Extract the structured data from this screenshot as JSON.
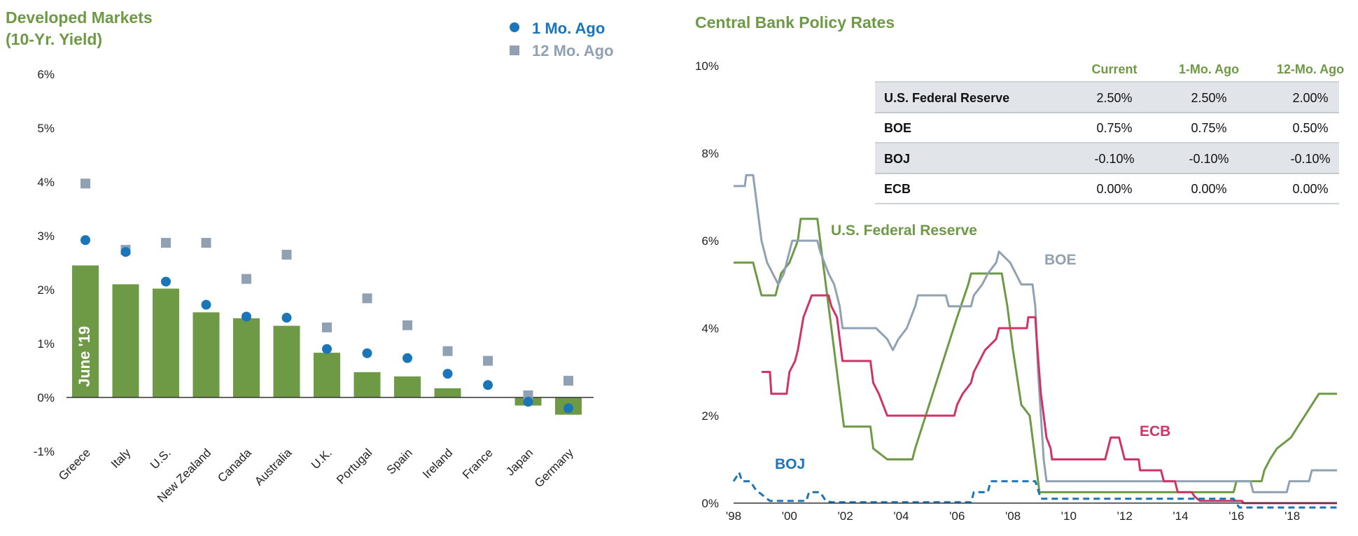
{
  "chart_data": [
    {
      "type": "bar",
      "title_line1": "Developed Markets",
      "title_line2": "(10-Yr. Yield)",
      "categories": [
        "Greece",
        "Italy",
        "U.S.",
        "New Zealand",
        "Canada",
        "Australia",
        "U.K.",
        "Portugal",
        "Spain",
        "Ireland",
        "France",
        "Japan",
        "Germany"
      ],
      "series": [
        {
          "name": "June '19",
          "kind": "bar",
          "values": [
            2.45,
            2.1,
            2.02,
            1.58,
            1.47,
            1.33,
            0.83,
            0.47,
            0.39,
            0.17,
            0.0,
            -0.15,
            -0.32
          ]
        },
        {
          "name": "1 Mo. Ago",
          "kind": "circle",
          "values": [
            2.92,
            2.7,
            2.15,
            1.72,
            1.5,
            1.48,
            0.9,
            0.82,
            0.73,
            0.44,
            0.23,
            -0.08,
            -0.2
          ]
        },
        {
          "name": "12 Mo. Ago",
          "kind": "square",
          "values": [
            3.97,
            2.74,
            2.87,
            2.87,
            2.2,
            2.65,
            1.3,
            1.84,
            1.34,
            0.86,
            0.68,
            0.04,
            0.31
          ]
        }
      ],
      "bar_label": "June '19",
      "legend": [
        "1 Mo. Ago",
        "12 Mo. Ago"
      ],
      "ylim": [
        -1,
        6
      ],
      "yticks": [
        "-1%",
        "0%",
        "1%",
        "2%",
        "3%",
        "4%",
        "5%",
        "6%"
      ],
      "colors": {
        "bar": "#6e9a45",
        "circle": "#1a75b9",
        "square": "#8fa1b3",
        "title": "#6e9a45"
      }
    },
    {
      "type": "line",
      "title": "Central Bank Policy Rates",
      "xlim": [
        1998,
        2019.6
      ],
      "ylim": [
        0,
        10
      ],
      "yticks": [
        "0%",
        "2%",
        "4%",
        "6%",
        "8%",
        "10%"
      ],
      "xticks": [
        "'98",
        "'00",
        "'02",
        "'04",
        "'06",
        "'08",
        "'10",
        "'12",
        "'14",
        "'16",
        "'18"
      ],
      "series": [
        {
          "name": "U.S. Federal Reserve",
          "color": "#6e9a45",
          "dashed": false,
          "points": [
            [
              1998.0,
              5.5
            ],
            [
              1998.7,
              5.5
            ],
            [
              1998.9,
              5.0
            ],
            [
              1999.0,
              4.75
            ],
            [
              1999.5,
              4.75
            ],
            [
              1999.7,
              5.25
            ],
            [
              2000.0,
              5.5
            ],
            [
              2000.3,
              6.0
            ],
            [
              2000.4,
              6.5
            ],
            [
              2001.0,
              6.5
            ],
            [
              2001.2,
              5.5
            ],
            [
              2001.5,
              4.0
            ],
            [
              2001.8,
              2.5
            ],
            [
              2001.95,
              1.75
            ],
            [
              2002.9,
              1.75
            ],
            [
              2003.0,
              1.25
            ],
            [
              2003.5,
              1.0
            ],
            [
              2004.4,
              1.0
            ],
            [
              2004.5,
              1.25
            ],
            [
              2005.0,
              2.25
            ],
            [
              2005.5,
              3.25
            ],
            [
              2006.0,
              4.25
            ],
            [
              2006.4,
              5.0
            ],
            [
              2006.5,
              5.25
            ],
            [
              2007.6,
              5.25
            ],
            [
              2007.8,
              4.5
            ],
            [
              2008.0,
              3.5
            ],
            [
              2008.3,
              2.25
            ],
            [
              2008.6,
              2.0
            ],
            [
              2008.8,
              1.0
            ],
            [
              2008.95,
              0.25
            ],
            [
              2015.9,
              0.25
            ],
            [
              2016.0,
              0.5
            ],
            [
              2016.9,
              0.5
            ],
            [
              2017.0,
              0.75
            ],
            [
              2017.2,
              1.0
            ],
            [
              2017.45,
              1.25
            ],
            [
              2017.95,
              1.5
            ],
            [
              2018.2,
              1.75
            ],
            [
              2018.45,
              2.0
            ],
            [
              2018.7,
              2.25
            ],
            [
              2018.95,
              2.5
            ],
            [
              2019.6,
              2.5
            ]
          ]
        },
        {
          "name": "BOE",
          "color": "#8fa1b3",
          "dashed": false,
          "points": [
            [
              1998.0,
              7.25
            ],
            [
              1998.4,
              7.25
            ],
            [
              1998.45,
              7.5
            ],
            [
              1998.7,
              7.5
            ],
            [
              1998.8,
              7.0
            ],
            [
              1999.0,
              6.0
            ],
            [
              1999.2,
              5.5
            ],
            [
              1999.4,
              5.25
            ],
            [
              1999.6,
              5.0
            ],
            [
              1999.8,
              5.25
            ],
            [
              2000.0,
              5.75
            ],
            [
              2000.1,
              6.0
            ],
            [
              2001.0,
              6.0
            ],
            [
              2001.1,
              5.75
            ],
            [
              2001.4,
              5.25
            ],
            [
              2001.6,
              5.0
            ],
            [
              2001.8,
              4.5
            ],
            [
              2001.9,
              4.0
            ],
            [
              2003.1,
              4.0
            ],
            [
              2003.5,
              3.75
            ],
            [
              2003.7,
              3.5
            ],
            [
              2003.9,
              3.75
            ],
            [
              2004.2,
              4.0
            ],
            [
              2004.5,
              4.5
            ],
            [
              2004.6,
              4.75
            ],
            [
              2005.6,
              4.75
            ],
            [
              2005.7,
              4.5
            ],
            [
              2006.5,
              4.5
            ],
            [
              2006.6,
              4.75
            ],
            [
              2006.9,
              5.0
            ],
            [
              2007.1,
              5.25
            ],
            [
              2007.4,
              5.5
            ],
            [
              2007.5,
              5.75
            ],
            [
              2007.9,
              5.5
            ],
            [
              2008.1,
              5.25
            ],
            [
              2008.3,
              5.0
            ],
            [
              2008.7,
              5.0
            ],
            [
              2008.8,
              4.5
            ],
            [
              2008.9,
              3.0
            ],
            [
              2009.0,
              2.0
            ],
            [
              2009.1,
              1.0
            ],
            [
              2009.2,
              0.5
            ],
            [
              2016.5,
              0.5
            ],
            [
              2016.6,
              0.25
            ],
            [
              2017.8,
              0.25
            ],
            [
              2017.9,
              0.5
            ],
            [
              2018.6,
              0.5
            ],
            [
              2018.7,
              0.75
            ],
            [
              2019.6,
              0.75
            ]
          ]
        },
        {
          "name": "ECB",
          "color": "#cd3467",
          "dashed": false,
          "points": [
            [
              1999.0,
              3.0
            ],
            [
              1999.3,
              3.0
            ],
            [
              1999.35,
              2.5
            ],
            [
              1999.9,
              2.5
            ],
            [
              2000.0,
              3.0
            ],
            [
              2000.2,
              3.25
            ],
            [
              2000.3,
              3.5
            ],
            [
              2000.5,
              4.25
            ],
            [
              2000.8,
              4.75
            ],
            [
              2001.4,
              4.75
            ],
            [
              2001.5,
              4.5
            ],
            [
              2001.7,
              4.25
            ],
            [
              2001.8,
              3.75
            ],
            [
              2001.9,
              3.25
            ],
            [
              2002.9,
              3.25
            ],
            [
              2003.0,
              2.75
            ],
            [
              2003.2,
              2.5
            ],
            [
              2003.5,
              2.0
            ],
            [
              2005.9,
              2.0
            ],
            [
              2006.0,
              2.25
            ],
            [
              2006.2,
              2.5
            ],
            [
              2006.5,
              2.75
            ],
            [
              2006.6,
              3.0
            ],
            [
              2006.8,
              3.25
            ],
            [
              2007.0,
              3.5
            ],
            [
              2007.4,
              3.75
            ],
            [
              2007.5,
              4.0
            ],
            [
              2008.5,
              4.0
            ],
            [
              2008.55,
              4.25
            ],
            [
              2008.8,
              4.25
            ],
            [
              2008.85,
              3.75
            ],
            [
              2009.0,
              2.5
            ],
            [
              2009.1,
              2.0
            ],
            [
              2009.2,
              1.5
            ],
            [
              2009.35,
              1.25
            ],
            [
              2009.4,
              1.0
            ],
            [
              2011.3,
              1.0
            ],
            [
              2011.4,
              1.25
            ],
            [
              2011.5,
              1.5
            ],
            [
              2011.8,
              1.5
            ],
            [
              2011.9,
              1.25
            ],
            [
              2012.0,
              1.0
            ],
            [
              2012.5,
              1.0
            ],
            [
              2012.55,
              0.75
            ],
            [
              2013.3,
              0.75
            ],
            [
              2013.4,
              0.5
            ],
            [
              2013.8,
              0.5
            ],
            [
              2013.9,
              0.25
            ],
            [
              2014.4,
              0.25
            ],
            [
              2014.5,
              0.15
            ],
            [
              2014.7,
              0.05
            ],
            [
              2016.2,
              0.05
            ],
            [
              2016.25,
              0.0
            ],
            [
              2019.6,
              0.0
            ]
          ]
        },
        {
          "name": "BOJ",
          "color": "#1a75b9",
          "dashed": true,
          "points": [
            [
              1998.0,
              0.5
            ],
            [
              1998.2,
              0.7
            ],
            [
              1998.3,
              0.5
            ],
            [
              1998.6,
              0.5
            ],
            [
              1998.8,
              0.3
            ],
            [
              1999.1,
              0.15
            ],
            [
              1999.3,
              0.05
            ],
            [
              2000.6,
              0.05
            ],
            [
              2000.7,
              0.25
            ],
            [
              2001.1,
              0.25
            ],
            [
              2001.2,
              0.15
            ],
            [
              2001.3,
              0.05
            ],
            [
              2001.5,
              0.02
            ],
            [
              2006.5,
              0.02
            ],
            [
              2006.6,
              0.25
            ],
            [
              2007.1,
              0.25
            ],
            [
              2007.2,
              0.5
            ],
            [
              2008.8,
              0.5
            ],
            [
              2008.9,
              0.3
            ],
            [
              2009.0,
              0.1
            ],
            [
              2015.9,
              0.1
            ],
            [
              2016.1,
              -0.1
            ],
            [
              2019.6,
              -0.1
            ]
          ]
        }
      ],
      "labels": {
        "fed": "U.S. Federal Reserve",
        "boe": "BOE",
        "ecb": "ECB",
        "boj": "BOJ"
      },
      "table": {
        "headers": [
          "Current",
          "1-Mo. Ago",
          "12-Mo. Ago"
        ],
        "rows": [
          {
            "name": "U.S. Federal Reserve",
            "values": [
              "2.50%",
              "2.50%",
              "2.00%"
            ]
          },
          {
            "name": "BOE",
            "values": [
              "0.75%",
              "0.75%",
              "0.50%"
            ]
          },
          {
            "name": "BOJ",
            "values": [
              "-0.10%",
              "-0.10%",
              "-0.10%"
            ]
          },
          {
            "name": "ECB",
            "values": [
              "0.00%",
              "0.00%",
              "0.00%"
            ]
          }
        ],
        "shade_color": "#e1e5ea"
      }
    }
  ]
}
